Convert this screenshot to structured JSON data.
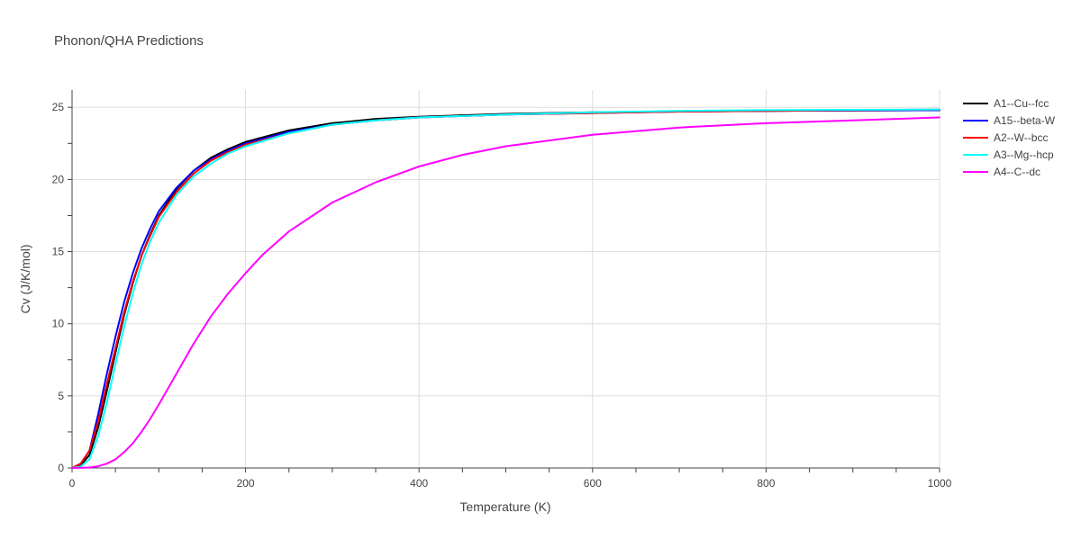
{
  "chart_data": {
    "type": "line",
    "title": "Phonon/QHA Predictions",
    "xlabel": "Temperature (K)",
    "ylabel": "Cv (J/K/mol)",
    "xlim": [
      0,
      1000
    ],
    "ylim": [
      0,
      26.2
    ],
    "xticks": [
      0,
      200,
      400,
      600,
      800,
      1000
    ],
    "xtick_labels": [
      "0",
      "200",
      "400",
      "600",
      "800",
      "1000"
    ],
    "yticks": [
      0,
      5,
      10,
      15,
      20,
      25
    ],
    "ytick_labels": [
      "0",
      "5",
      "10",
      "15",
      "20",
      "25"
    ],
    "grid": true,
    "legend_position": "top-right",
    "series": [
      {
        "name": "A1--Cu--fcc",
        "color": "#000000",
        "x": [
          0,
          10,
          20,
          30,
          40,
          50,
          60,
          70,
          80,
          90,
          100,
          120,
          140,
          160,
          180,
          200,
          250,
          300,
          350,
          400,
          500,
          600,
          700,
          800,
          900,
          1000
        ],
        "y": [
          0,
          0.2,
          0.9,
          2.8,
          5.3,
          8.0,
          10.6,
          12.8,
          14.7,
          16.2,
          17.5,
          19.3,
          20.6,
          21.5,
          22.1,
          22.6,
          23.4,
          23.9,
          24.2,
          24.35,
          24.55,
          24.65,
          24.7,
          24.75,
          24.78,
          24.8
        ]
      },
      {
        "name": "A15--beta-W",
        "color": "#0000ff",
        "x": [
          0,
          10,
          20,
          30,
          40,
          50,
          60,
          70,
          80,
          90,
          100,
          120,
          140,
          160,
          180,
          200,
          250,
          300,
          350,
          400,
          500,
          600,
          700,
          800,
          900,
          1000
        ],
        "y": [
          0,
          0.3,
          1.2,
          3.7,
          6.5,
          9.1,
          11.5,
          13.5,
          15.2,
          16.6,
          17.8,
          19.4,
          20.6,
          21.4,
          22.0,
          22.5,
          23.3,
          23.8,
          24.1,
          24.3,
          24.5,
          24.6,
          24.7,
          24.75,
          24.78,
          24.8
        ]
      },
      {
        "name": "A2--W--bcc",
        "color": "#ff0000",
        "x": [
          0,
          10,
          20,
          30,
          40,
          50,
          60,
          70,
          80,
          90,
          100,
          120,
          140,
          160,
          180,
          200,
          250,
          300,
          350,
          400,
          500,
          600,
          700,
          800,
          900,
          1000
        ],
        "y": [
          0,
          0.3,
          1.2,
          3.2,
          5.8,
          8.3,
          10.8,
          12.9,
          14.7,
          16.1,
          17.4,
          19.1,
          20.4,
          21.3,
          21.9,
          22.4,
          23.2,
          23.8,
          24.1,
          24.3,
          24.5,
          24.6,
          24.7,
          24.75,
          24.8,
          24.85
        ]
      },
      {
        "name": "A3--Mg--hcp",
        "color": "#00ffff",
        "x": [
          0,
          10,
          20,
          30,
          40,
          50,
          60,
          70,
          80,
          90,
          100,
          120,
          140,
          160,
          180,
          200,
          250,
          300,
          350,
          400,
          500,
          600,
          700,
          800,
          900,
          1000
        ],
        "y": [
          0,
          0.1,
          0.6,
          2.2,
          4.5,
          7.2,
          9.8,
          12.1,
          14.1,
          15.7,
          17.0,
          18.9,
          20.2,
          21.1,
          21.8,
          22.3,
          23.2,
          23.8,
          24.1,
          24.3,
          24.5,
          24.65,
          24.75,
          24.8,
          24.83,
          24.85
        ]
      },
      {
        "name": "A4--C--dc",
        "color": "#ff00ff",
        "x": [
          0,
          20,
          30,
          40,
          50,
          60,
          70,
          80,
          90,
          100,
          120,
          140,
          160,
          180,
          200,
          220,
          250,
          300,
          350,
          400,
          450,
          500,
          600,
          700,
          800,
          900,
          1000
        ],
        "y": [
          0,
          0.03,
          0.12,
          0.3,
          0.6,
          1.1,
          1.7,
          2.5,
          3.4,
          4.4,
          6.5,
          8.6,
          10.5,
          12.1,
          13.5,
          14.8,
          16.4,
          18.4,
          19.8,
          20.9,
          21.7,
          22.3,
          23.1,
          23.6,
          23.9,
          24.1,
          24.3
        ]
      }
    ]
  }
}
